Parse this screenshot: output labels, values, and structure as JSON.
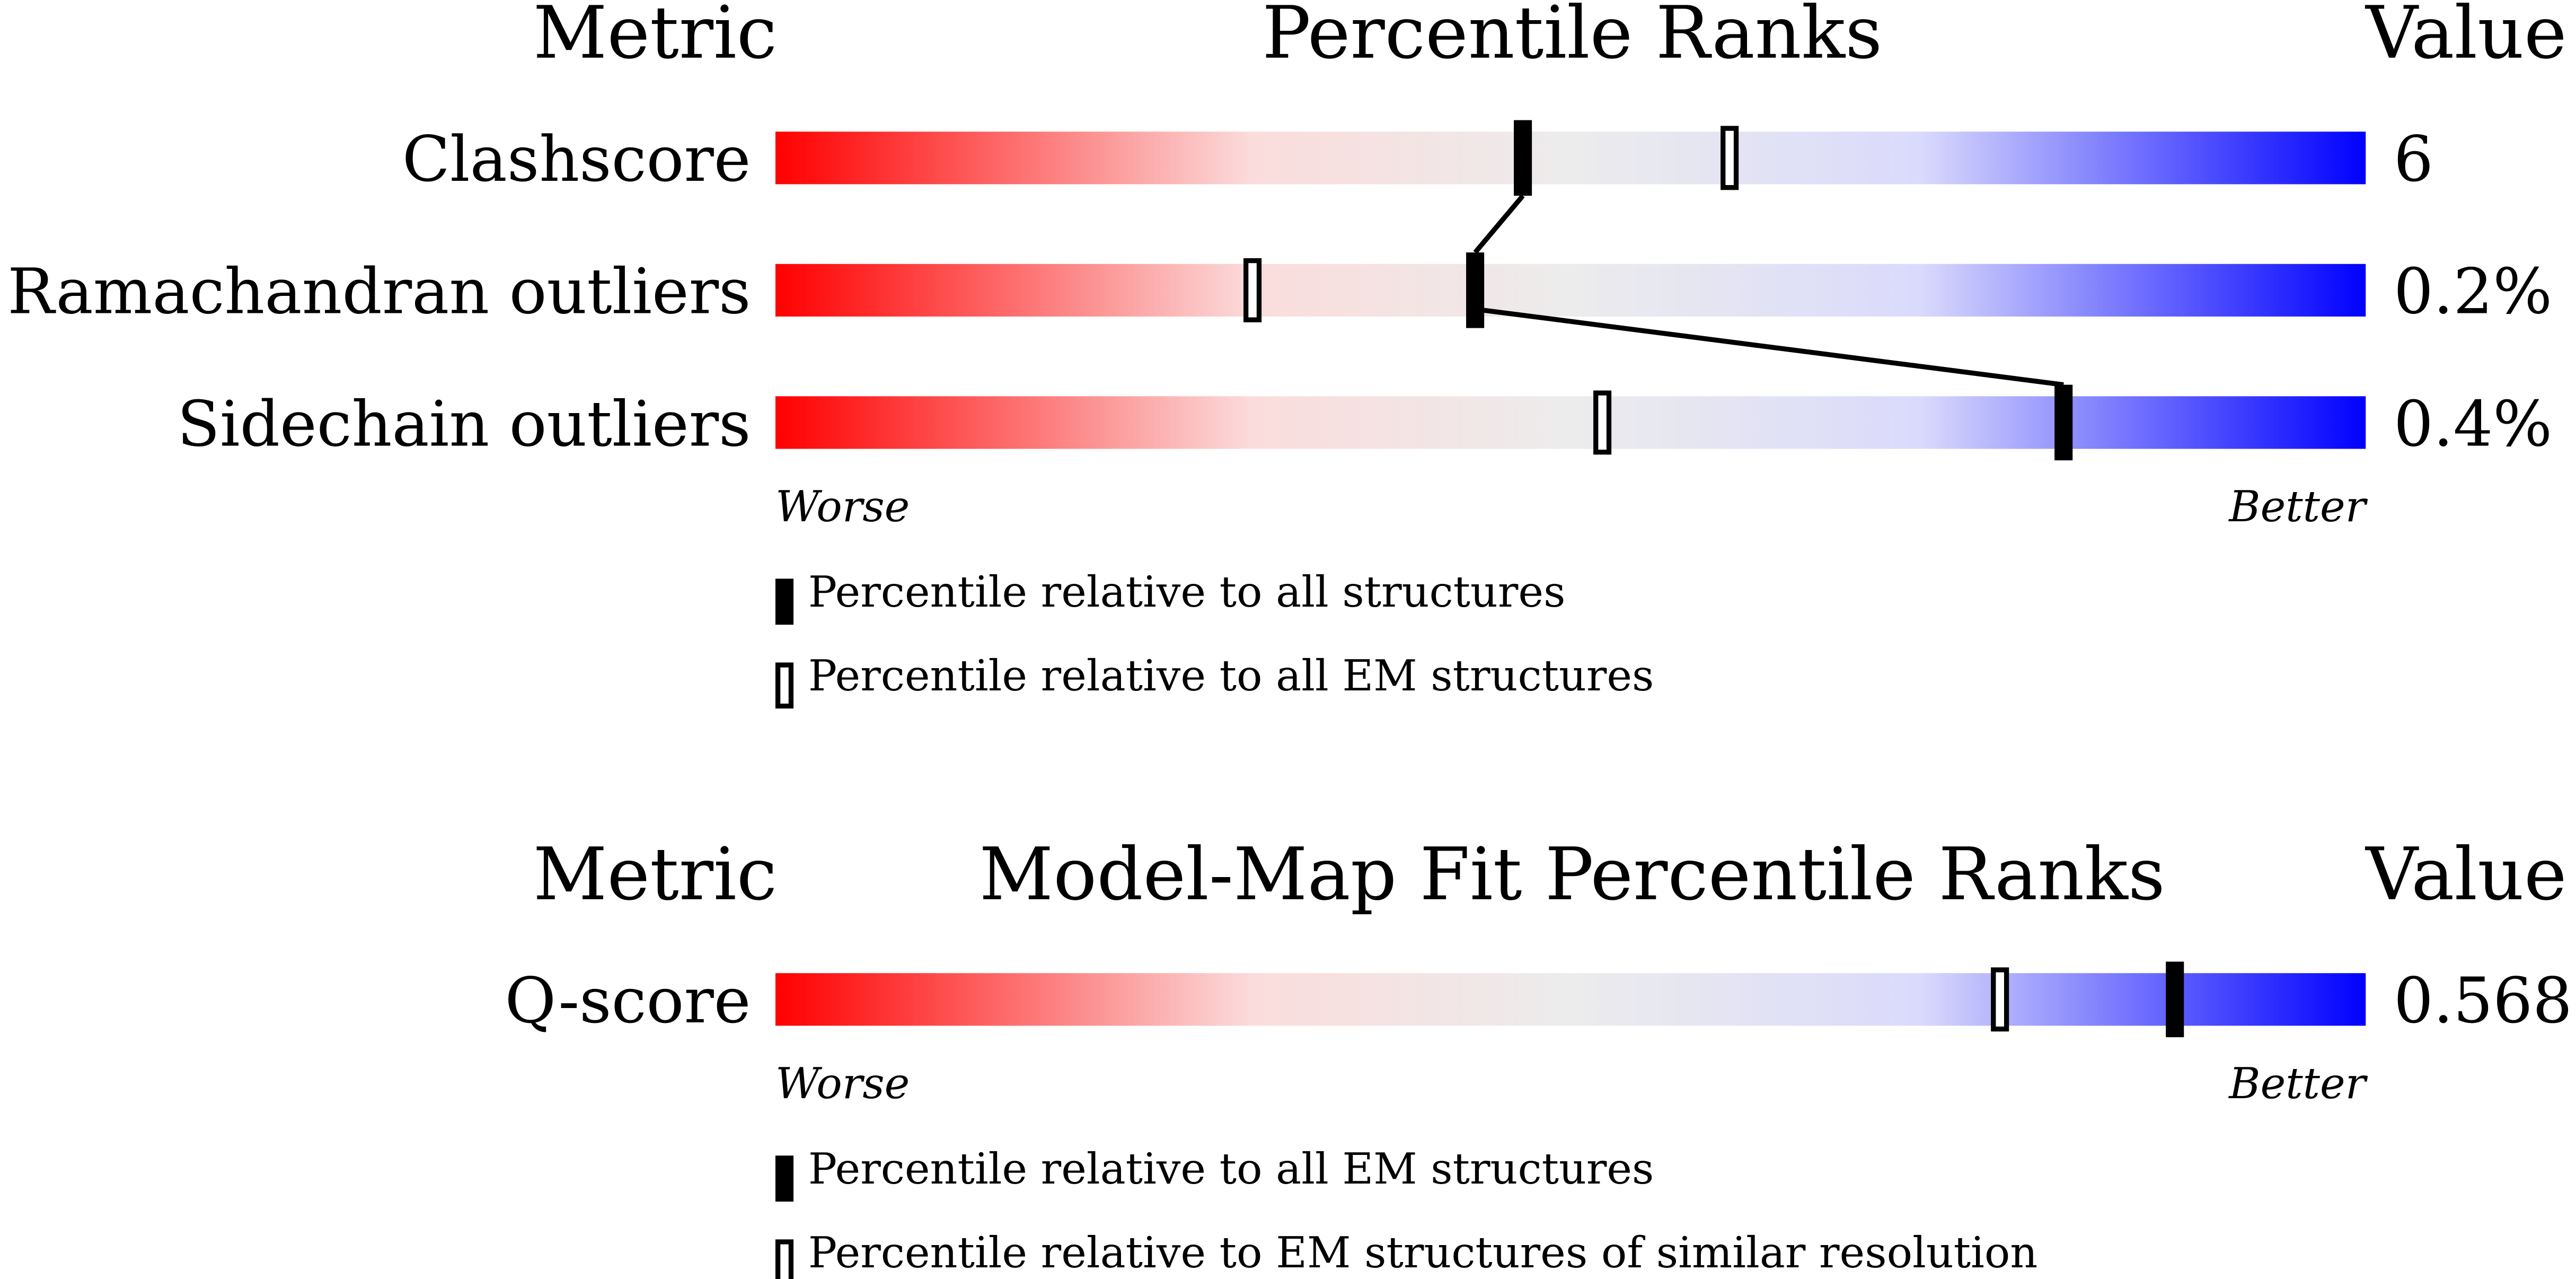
{
  "chart_data": [
    {
      "type": "percentile",
      "headers": [
        "Metric",
        "Percentile Ranks",
        "Value"
      ],
      "categories": [
        "Clashscore",
        "Ramachandran outliers",
        "Sidechain outliers"
      ],
      "metric_values": [
        "6",
        "0.2%",
        "0.4%"
      ],
      "xlim": [
        0,
        100
      ],
      "low_label": "Worse",
      "high_label": "Better",
      "series": [
        {
          "name": "Percentile relative to all structures",
          "color": "#000000",
          "style": "filled",
          "values": [
            47,
            44,
            81
          ]
        },
        {
          "name": "Percentile relative to all EM structures",
          "color": "#000000",
          "style": "open",
          "values": [
            60,
            30,
            52
          ]
        }
      ]
    },
    {
      "type": "percentile",
      "headers": [
        "Metric",
        "Model-Map Fit Percentile Ranks",
        "Value"
      ],
      "categories": [
        "Q-score"
      ],
      "metric_values": [
        "0.568"
      ],
      "xlim": [
        0,
        100
      ],
      "low_label": "Worse",
      "high_label": "Better",
      "series": [
        {
          "name": "Percentile relative to all EM structures",
          "color": "#000000",
          "style": "filled",
          "values": [
            88
          ]
        },
        {
          "name": "Percentile relative to EM structures of similar resolution",
          "color": "#000000",
          "style": "open",
          "values": [
            77
          ]
        }
      ]
    }
  ]
}
